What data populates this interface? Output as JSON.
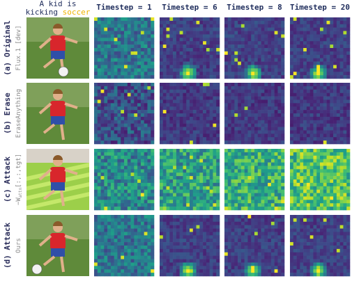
{
  "header": {
    "prompt_line1": "A kid is",
    "prompt_word1": "kicking",
    "prompt_word2": "soccer"
  },
  "columns": [
    "Timestep = 1",
    "Timestep = 6",
    "Timestep = 8",
    "Timestep = 20"
  ],
  "rows": [
    {
      "label": "(a) Original",
      "method": "Flux.1 [dev]"
    },
    {
      "label": "(b) Erase",
      "method": "EraseAnything"
    },
    {
      "label": "(c) Attack",
      "method_parts": [
        "−W",
        "attn",
        "[:,:,tgt]"
      ]
    },
    {
      "label": "(d) Attack",
      "method": "Ours"
    }
  ]
}
